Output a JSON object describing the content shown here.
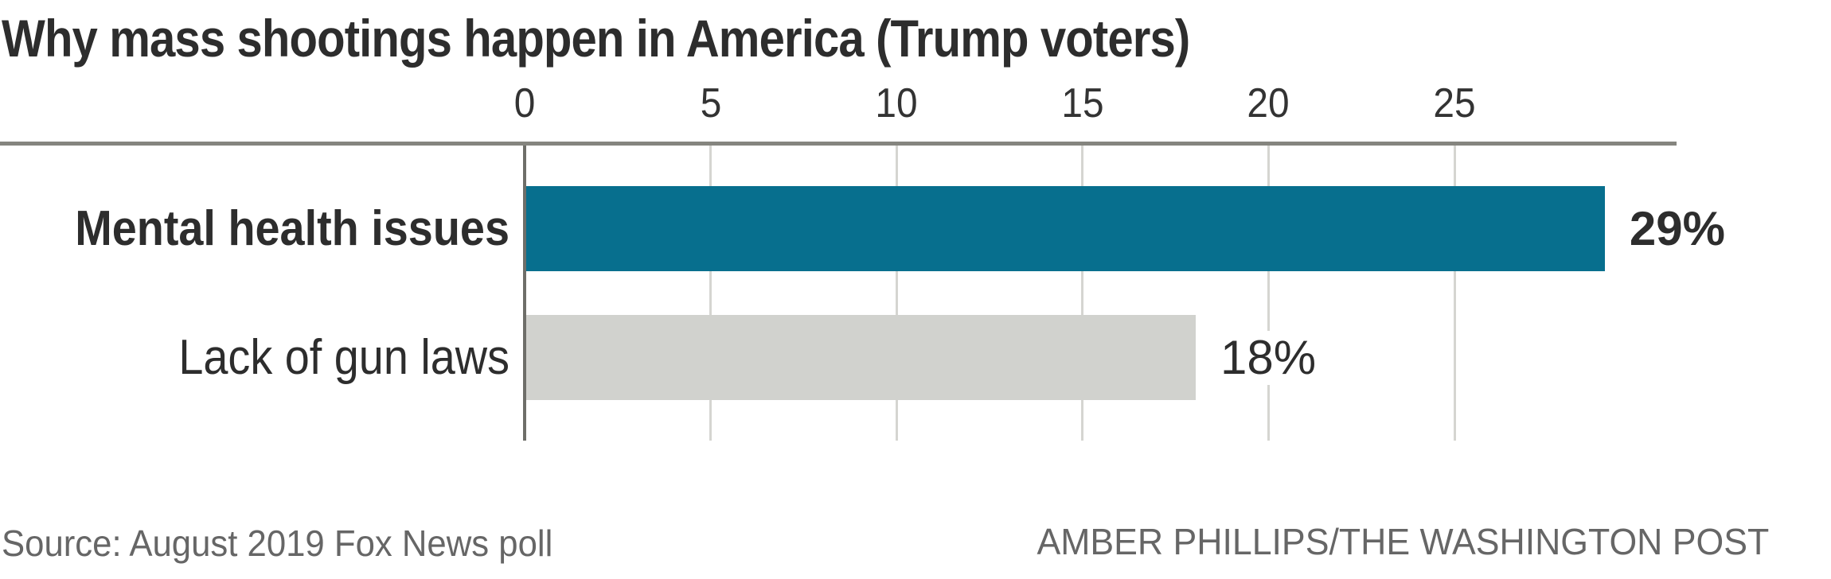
{
  "chart_data": {
    "type": "bar",
    "orientation": "horizontal",
    "title": "Why mass shootings happen in America (Trump voters)",
    "categories": [
      "Mental health issues",
      "Lack of gun laws"
    ],
    "values": [
      29,
      18
    ],
    "value_labels": [
      "29%",
      "18%"
    ],
    "emphasis": [
      true,
      false
    ],
    "bar_colors": [
      "#076f8e",
      "#d1d2ce"
    ],
    "x_ticks": [
      0,
      5,
      10,
      15,
      20,
      25
    ],
    "x_tick_labels": [
      "0",
      "5",
      "10",
      "15",
      "20",
      "25"
    ],
    "xlim": [
      0,
      29
    ],
    "xlabel": "",
    "ylabel": "",
    "grid": true,
    "legend": "none",
    "unit": "percent of respondents"
  },
  "footer": {
    "source": "Source: August 2019 Fox News poll",
    "credit": "AMBER PHILLIPS/THE WASHINGTON POST"
  },
  "colors": {
    "title_text": "#2d2d2d",
    "tick_text": "#333333",
    "axis_line": "#85857f",
    "zero_line": "#6e6e69",
    "gridline": "#d5d5d1",
    "footer_text": "#666666"
  }
}
